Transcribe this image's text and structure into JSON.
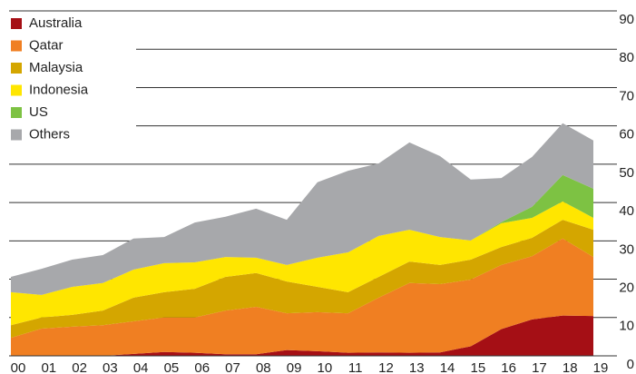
{
  "chart_data": {
    "type": "stacked-area",
    "categories": [
      "00",
      "01",
      "02",
      "03",
      "04",
      "05",
      "06",
      "07",
      "08",
      "09",
      "10",
      "11",
      "12",
      "13",
      "14",
      "15",
      "16",
      "17",
      "18",
      "19"
    ],
    "series": [
      {
        "name": "Australia",
        "color": "#a50f15",
        "values": [
          0,
          0,
          0,
          0,
          0.5,
          1,
          0.8,
          0.4,
          0.4,
          1.5,
          1.2,
          0.8,
          0.9,
          0.8,
          0.9,
          2.5,
          7,
          9.5,
          10.5,
          10.4
        ]
      },
      {
        "name": "Qatar",
        "color": "#f07f22",
        "values": [
          4.7,
          7.1,
          7.6,
          8,
          8.5,
          9,
          9.2,
          11.4,
          12.4,
          9.6,
          10.2,
          10.3,
          14.3,
          18.2,
          17.8,
          17.4,
          16.7,
          16.5,
          20.1,
          15.4
        ]
      },
      {
        "name": "Malaysia",
        "color": "#d4a600",
        "values": [
          3.3,
          2.9,
          3.1,
          3.8,
          6.2,
          6.6,
          7.5,
          8.8,
          8.8,
          8.3,
          6.6,
          5.5,
          5.4,
          5.6,
          5,
          5.2,
          4.7,
          4.8,
          4.9,
          7.1
        ]
      },
      {
        "name": "Indonesia",
        "color": "#ffe600",
        "values": [
          8.6,
          5.9,
          7.3,
          7.2,
          7.3,
          7.6,
          6.9,
          5.2,
          4,
          4.3,
          7.6,
          10.4,
          10.7,
          8.3,
          7.3,
          5,
          6.2,
          5.2,
          4.8,
          3.1
        ]
      },
      {
        "name": "US",
        "color": "#7dc243",
        "values": [
          0,
          0,
          0,
          0,
          0,
          0,
          0,
          0,
          0,
          0,
          0,
          0,
          0,
          0,
          0,
          0,
          0.3,
          2.9,
          6.9,
          7.6
        ]
      },
      {
        "name": "Others",
        "color": "#a7a8ab",
        "values": [
          4,
          6.8,
          7.1,
          7.3,
          8.1,
          6.8,
          10.4,
          10.5,
          12.8,
          11.8,
          19.7,
          21.3,
          18.9,
          22.8,
          21.1,
          15.9,
          11.5,
          13,
          13.5,
          12.6
        ]
      }
    ],
    "ylim": [
      0,
      90
    ],
    "yticks": [
      0,
      10,
      20,
      30,
      40,
      50,
      60,
      70,
      80,
      90
    ],
    "grid": true,
    "legend": "top-left"
  }
}
